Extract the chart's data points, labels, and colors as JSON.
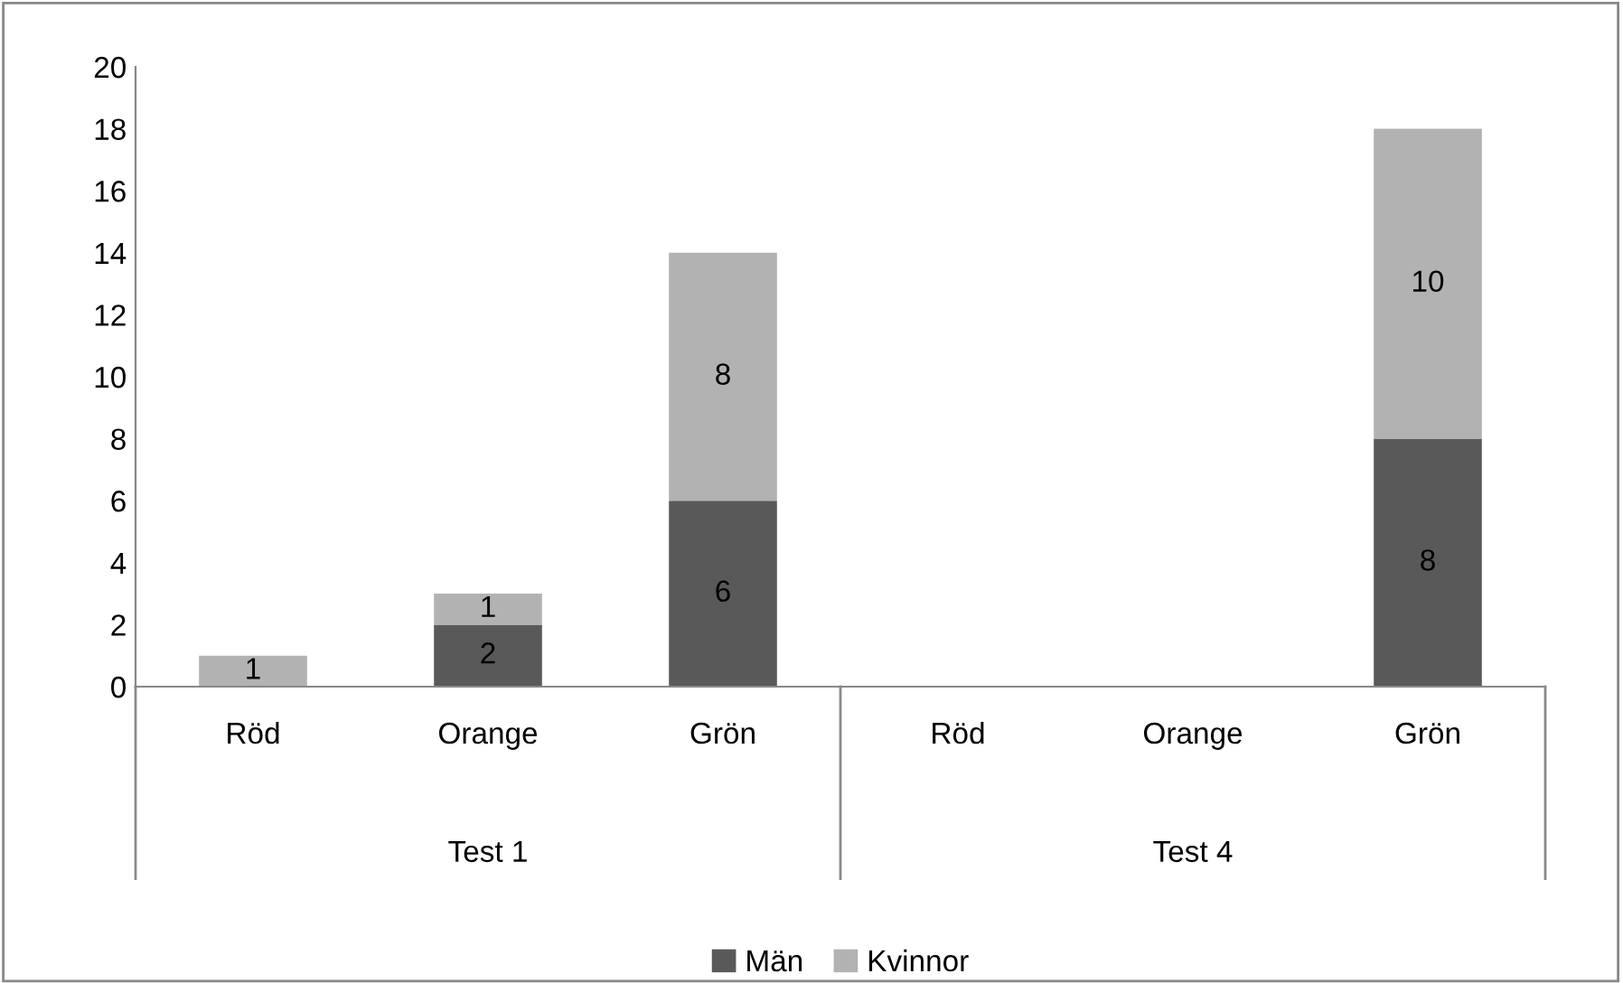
{
  "chart_data": {
    "type": "bar",
    "stacked": true,
    "categories": [
      "Röd",
      "Orange",
      "Grön",
      "Röd",
      "Orange",
      "Grön"
    ],
    "series": [
      {
        "name": "Män",
        "color": "#595959",
        "values": [
          0,
          2,
          6,
          0,
          0,
          8
        ],
        "value_labels": [
          null,
          "2",
          "6",
          null,
          null,
          "8"
        ]
      },
      {
        "name": "Kvinnor",
        "color": "#b2b2b2",
        "values": [
          1,
          1,
          8,
          0,
          0,
          10
        ],
        "value_labels": [
          "1",
          "1",
          "8",
          null,
          null,
          "10"
        ]
      }
    ],
    "annotations": [
      "Test 1",
      "Test 4"
    ],
    "ylim": [
      0,
      20
    ],
    "yticks": [
      0,
      2,
      4,
      6,
      8,
      10,
      12,
      14,
      16,
      18,
      20
    ],
    "grid": false,
    "legend": "bottom"
  }
}
